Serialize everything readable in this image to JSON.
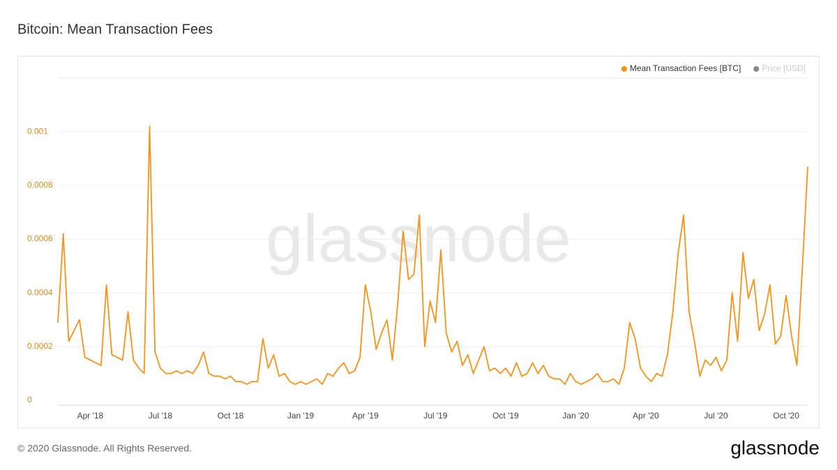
{
  "chart_data": {
    "type": "line",
    "title": "Bitcoin: Mean Transaction Fees",
    "watermark": "glassnode",
    "footer": "© 2020 Glassnode. All Rights Reserved.",
    "brand": "glassnode",
    "categories": [
      null,
      null,
      null,
      null,
      null,
      null,
      "Apr '18",
      null,
      null,
      null,
      null,
      null,
      null,
      null,
      null,
      null,
      null,
      null,
      null,
      "Jul '18",
      null,
      null,
      null,
      null,
      null,
      null,
      null,
      null,
      null,
      null,
      null,
      null,
      "Oct '18",
      null,
      null,
      null,
      null,
      null,
      null,
      null,
      null,
      null,
      null,
      null,
      null,
      "Jan '19",
      null,
      null,
      null,
      null,
      null,
      null,
      null,
      null,
      null,
      null,
      null,
      "Apr '19",
      null,
      null,
      null,
      null,
      null,
      null,
      null,
      null,
      null,
      null,
      null,
      null,
      "Jul '19",
      null,
      null,
      null,
      null,
      null,
      null,
      null,
      null,
      null,
      null,
      null,
      null,
      "Oct '19",
      null,
      null,
      null,
      null,
      null,
      null,
      null,
      null,
      null,
      null,
      null,
      null,
      "Jan '20",
      null,
      null,
      null,
      null,
      null,
      null,
      null,
      null,
      null,
      null,
      null,
      null,
      "Apr '20",
      null,
      null,
      null,
      null,
      null,
      null,
      null,
      null,
      null,
      null,
      null,
      null,
      "Jul '20",
      null,
      null,
      null,
      null,
      null,
      null,
      null,
      null,
      null,
      null,
      null,
      null,
      "Oct '20",
      null,
      null,
      null,
      null
    ],
    "series": [
      {
        "name": "Mean Transaction Fees [BTC]",
        "color": "#f7931a",
        "values": [
          0.00029,
          0.00062,
          0.00022,
          0.00026,
          0.0003,
          0.00016,
          0.00015,
          0.00014,
          0.00013,
          0.00043,
          0.00017,
          0.00016,
          0.00015,
          0.00033,
          0.00015,
          0.00012,
          0.0001,
          0.00102,
          0.00018,
          0.00012,
          0.0001,
          0.0001,
          0.00011,
          0.0001,
          0.00011,
          0.0001,
          0.00013,
          0.00018,
          0.0001,
          9e-05,
          9e-05,
          8e-05,
          9e-05,
          7e-05,
          7e-05,
          6e-05,
          7e-05,
          7e-05,
          0.00023,
          0.00012,
          0.00017,
          9e-05,
          0.0001,
          7e-05,
          6e-05,
          7e-05,
          6e-05,
          7e-05,
          8e-05,
          6e-05,
          0.0001,
          9e-05,
          0.00012,
          0.00014,
          0.0001,
          0.00011,
          0.00016,
          0.00043,
          0.00033,
          0.00019,
          0.00025,
          0.0003,
          0.00015,
          0.00036,
          0.00063,
          0.00045,
          0.00047,
          0.00069,
          0.0002,
          0.00037,
          0.00029,
          0.00056,
          0.00025,
          0.00018,
          0.00022,
          0.00013,
          0.00017,
          0.0001,
          0.00015,
          0.0002,
          0.00011,
          0.00012,
          0.0001,
          0.00012,
          9e-05,
          0.00014,
          9e-05,
          0.0001,
          0.00014,
          0.0001,
          0.00013,
          9e-05,
          8e-05,
          8e-05,
          6e-05,
          0.0001,
          7e-05,
          6e-05,
          7e-05,
          8e-05,
          0.0001,
          7e-05,
          7e-05,
          8e-05,
          6e-05,
          0.00012,
          0.00029,
          0.00023,
          0.00012,
          9e-05,
          7e-05,
          0.0001,
          9e-05,
          0.00017,
          0.00033,
          0.00055,
          0.00069,
          0.00033,
          0.00022,
          9e-05,
          0.00015,
          0.00013,
          0.00016,
          0.00011,
          0.00015,
          0.0004,
          0.00022,
          0.00055,
          0.00038,
          0.00045,
          0.00026,
          0.00032,
          0.00043,
          0.00021,
          0.00024,
          0.00039,
          0.00024,
          0.00013,
          0.00049,
          0.00087
        ]
      }
    ],
    "inactive_series": [
      {
        "name": "Price [USD]",
        "color": "#888888"
      }
    ],
    "ylim": [
      0,
      0.0012
    ],
    "yticks": [
      0,
      0.0002,
      0.0004,
      0.0006,
      0.0008,
      0.001
    ],
    "grid": true
  }
}
